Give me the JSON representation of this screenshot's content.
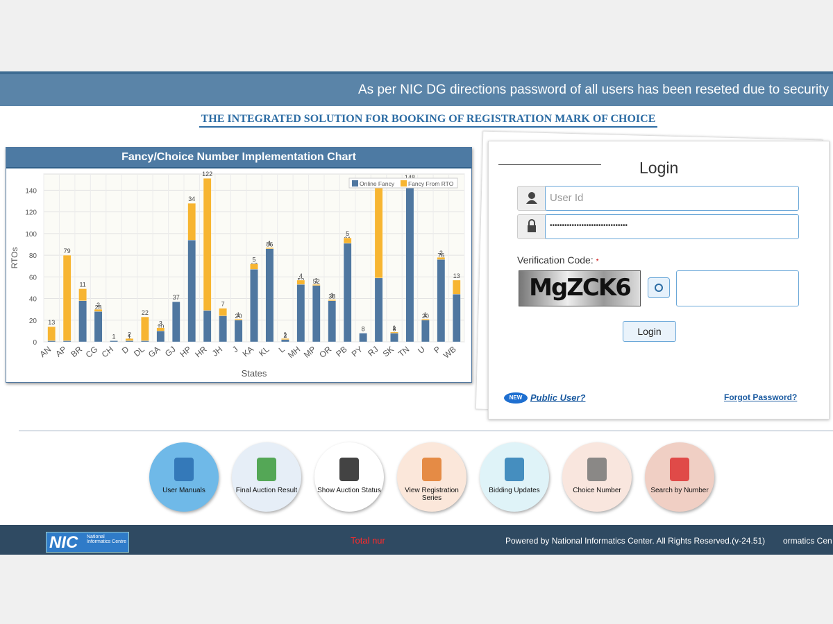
{
  "banner": {
    "notice": "As per NIC DG directions password of all users has been reseted due to security"
  },
  "header": {
    "title": "THE INTEGRATED SOLUTION FOR BOOKING OF REGISTRATION MARK OF CHOICE"
  },
  "chart_data": {
    "type": "stacked_bar",
    "title": "Fancy/Choice Number Implementation Chart",
    "x_label": "States",
    "y_label": "RTOs",
    "categories": [
      "AN",
      "AP",
      "BR",
      "CG",
      "CH",
      "D",
      "DL",
      "GA",
      "GJ",
      "HP",
      "HR",
      "JH",
      "J",
      "KA",
      "KL",
      "L",
      "MH",
      "MP",
      "OR",
      "PB",
      "PY",
      "RJ",
      "SK",
      "TN",
      "U",
      "P",
      "WB"
    ],
    "series": [
      {
        "name": "Online Fancy",
        "color": "#4f77a0",
        "values": [
          1,
          1,
          38,
          28,
          1,
          1,
          1,
          10,
          37,
          94,
          29,
          24,
          20,
          67,
          86,
          2,
          53,
          52,
          38,
          91,
          8,
          59,
          8,
          148,
          20,
          76,
          44
        ]
      },
      {
        "name": "Fancy From RTO",
        "color": "#f7b531",
        "values": [
          13,
          79,
          11,
          2,
          0,
          2,
          22,
          3,
          0,
          34,
          122,
          7,
          1,
          5,
          1,
          1,
          4,
          1,
          1,
          5,
          0,
          85,
          1,
          0,
          1,
          2,
          13
        ]
      }
    ],
    "ylim": [
      0,
      155
    ],
    "yticks": [
      0,
      20,
      40,
      60,
      80,
      100,
      120,
      140
    ],
    "grid": true,
    "legend": "top-right"
  },
  "login": {
    "title": "Login",
    "user_placeholder": "User Id",
    "password_mask": "••••••••••••••••••••••••••••••••",
    "verification_label": "Verification Code:",
    "required_mark": "*",
    "captcha_text": "MgZCK6",
    "button": "Login",
    "public_user": "Public User?",
    "forgot_password": "Forgot Password?",
    "new_badge": "NEW"
  },
  "services": [
    {
      "label": "User Manuals"
    },
    {
      "label": "Final Auction Result"
    },
    {
      "label": "Show Auction Status"
    },
    {
      "label": "View Registration Series"
    },
    {
      "label": "Bidding Updates"
    },
    {
      "label": "Choice Number"
    },
    {
      "label": "Search by Number"
    }
  ],
  "footer": {
    "logo": "NIC",
    "logo_text": "National Informatics Centre",
    "counter": "Total nur",
    "powered": "Powered by National Informatics Center. All Rights Reserved.(v-24.51)",
    "trail": "ormatics Cen"
  }
}
